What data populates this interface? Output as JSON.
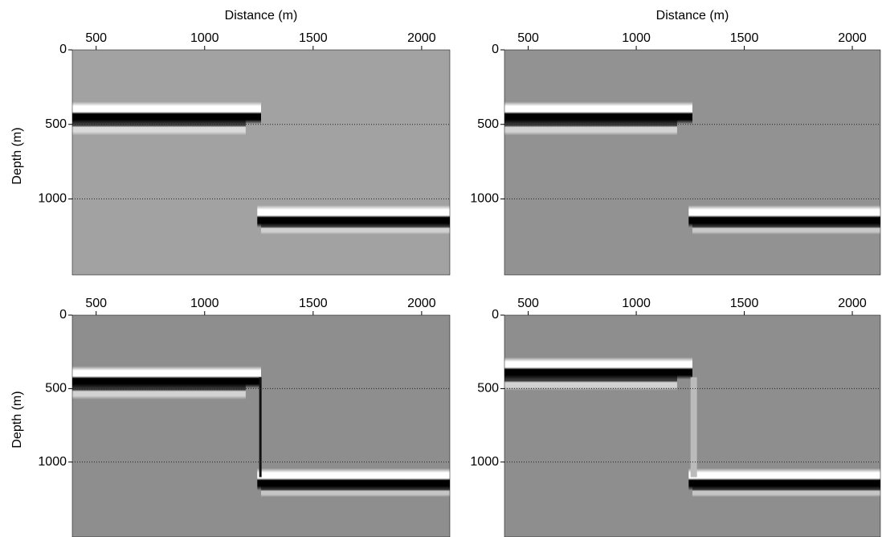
{
  "chart_data": [
    {
      "type": "image",
      "xlabel": "Distance (m)",
      "ylabel": "Depth (m)",
      "xlim": [
        390,
        2130
      ],
      "ylim": [
        0,
        1510
      ],
      "xticks": [
        500,
        1000,
        1500,
        2000
      ],
      "yticks": [
        0,
        500,
        1000
      ],
      "grid": "y"
    },
    {
      "type": "image",
      "xlabel": "Distance (m)",
      "xlim": [
        390,
        2130
      ],
      "ylim": [
        0,
        1510
      ],
      "xticks": [
        500,
        1000,
        1500,
        2000
      ],
      "yticks": [
        0,
        500,
        1000
      ],
      "grid": "y"
    },
    {
      "type": "image",
      "ylabel": "Depth (m)",
      "xlim": [
        390,
        2130
      ],
      "ylim": [
        0,
        1510
      ],
      "xticks": [
        500,
        1000,
        1500,
        2000
      ],
      "yticks": [
        0,
        500,
        1000
      ],
      "grid": "y"
    },
    {
      "type": "image",
      "xlim": [
        390,
        2130
      ],
      "ylim": [
        0,
        1510
      ],
      "xticks": [
        500,
        1000,
        1500,
        2000
      ],
      "yticks": [
        0,
        500,
        1000
      ],
      "grid": "y"
    }
  ]
}
